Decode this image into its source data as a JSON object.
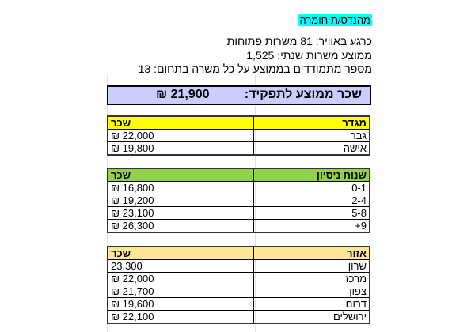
{
  "header": {
    "title": "מהנדס/ת חומרה",
    "lines": [
      "כרגע באוויר: 81 משרות פתוחות",
      "ממוצע משרות שנתי: 1,525",
      "מספר מתמודדים בממוצע על כל משרה בתחום: 13"
    ]
  },
  "average": {
    "label": "שכר ממוצע לתפקיד:",
    "value": "21,900 ₪"
  },
  "tables": [
    {
      "header_color": "#ffff00",
      "key_header": "מגדר",
      "value_header": "שכר",
      "rows": [
        [
          "גבר",
          "22,000 ₪"
        ],
        [
          "אישה",
          "19,800 ₪"
        ]
      ]
    },
    {
      "header_color": "#92d050",
      "key_header": "שנות ניסיון",
      "value_header": "שכר",
      "rows": [
        [
          "0-1",
          "16,800 ₪"
        ],
        [
          "2-4",
          "19,200 ₪"
        ],
        [
          "5-8",
          "23,100 ₪"
        ],
        [
          "9+",
          "26,300 ₪"
        ]
      ]
    },
    {
      "header_color": "#ffe699",
      "key_header": "אזור",
      "value_header": "שכר",
      "rows": [
        [
          "שרון",
          "23,300"
        ],
        [
          "מרכז",
          "22,000 ₪"
        ],
        [
          "צפון",
          "21,700 ₪"
        ],
        [
          "דרום",
          "19,600 ₪"
        ],
        [
          "ירושלים",
          "22,100 ₪"
        ]
      ]
    }
  ]
}
